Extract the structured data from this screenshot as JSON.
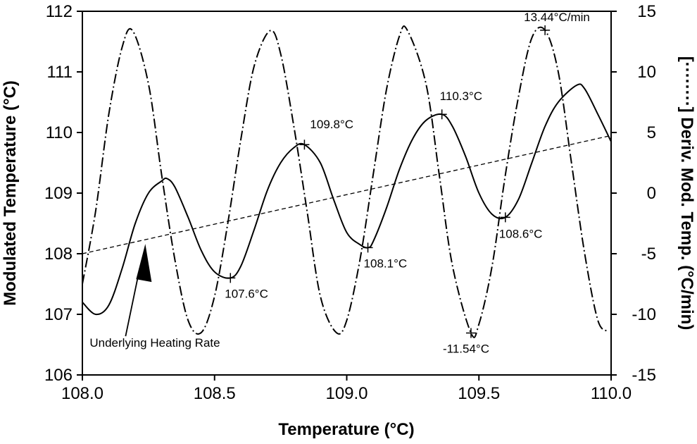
{
  "chart_data": {
    "type": "line",
    "xlabel": "Temperature (°C)",
    "ylabel": "Modulated Temperature (°C)",
    "y2label": "[········] Deriv. Mod. Temp. (°C/min)",
    "xlim": [
      108.0,
      110.0
    ],
    "ylim": [
      106,
      112
    ],
    "y2lim": [
      -15,
      15
    ],
    "xticks": [
      "108.0",
      "108.5",
      "109.0",
      "109.5",
      "110.0"
    ],
    "yticks": [
      "106",
      "107",
      "108",
      "109",
      "110",
      "111",
      "112"
    ],
    "y2ticks": [
      "-15",
      "-10",
      "-5",
      "0",
      "5",
      "10",
      "15"
    ],
    "grid": false,
    "series": [
      {
        "style": "solid",
        "axis": "left",
        "x": [
          108.0,
          108.05,
          108.1,
          108.15,
          108.2,
          108.25,
          108.3,
          108.32,
          108.35,
          108.4,
          108.45,
          108.5,
          108.56,
          108.6,
          108.65,
          108.7,
          108.75,
          108.8,
          108.84,
          108.9,
          108.95,
          109.0,
          109.05,
          109.08,
          109.1,
          109.15,
          109.2,
          109.25,
          109.3,
          109.36,
          109.4,
          109.45,
          109.5,
          109.55,
          109.6,
          109.65,
          109.7,
          109.75,
          109.8,
          109.87,
          109.9,
          109.95,
          110.0
        ],
        "y": [
          107.2,
          107.0,
          107.15,
          107.75,
          108.5,
          109.0,
          109.2,
          109.24,
          109.1,
          108.6,
          108.05,
          107.7,
          107.6,
          107.8,
          108.4,
          109.05,
          109.5,
          109.75,
          109.8,
          109.5,
          108.9,
          108.35,
          108.15,
          108.1,
          108.2,
          108.75,
          109.4,
          109.9,
          110.2,
          110.3,
          110.1,
          109.6,
          109.0,
          108.65,
          108.6,
          108.9,
          109.5,
          110.1,
          110.5,
          110.78,
          110.72,
          110.3,
          109.85
        ]
      },
      {
        "style": "long-dash",
        "axis": "right",
        "x": [
          108.0,
          108.05,
          108.1,
          108.15,
          108.19,
          108.25,
          108.3,
          108.35,
          108.4,
          108.45,
          108.5,
          108.55,
          108.6,
          108.65,
          108.71,
          108.75,
          108.8,
          108.85,
          108.9,
          108.96,
          109.0,
          109.05,
          109.1,
          109.15,
          109.2,
          109.23,
          109.3,
          109.35,
          109.4,
          109.47,
          109.5,
          109.55,
          109.6,
          109.65,
          109.7,
          109.75,
          109.8,
          109.85,
          109.9,
          109.95,
          109.99
        ],
        "y": [
          -7.5,
          -1.5,
          6.5,
          12.0,
          13.4,
          9.0,
          1.5,
          -5.5,
          -10.5,
          -11.5,
          -8.5,
          -2.5,
          4.5,
          10.5,
          13.4,
          11.5,
          5.5,
          -1.5,
          -8.5,
          -11.5,
          -10.5,
          -5.5,
          1.5,
          8.5,
          13.0,
          13.4,
          9.0,
          1.5,
          -6.0,
          -11.54,
          -10.8,
          -6.0,
          1.5,
          8.0,
          12.8,
          13.44,
          10.0,
          2.5,
          -5.0,
          -10.5,
          -11.4
        ]
      },
      {
        "style": "short-dash",
        "axis": "left",
        "x": [
          108.0,
          110.0
        ],
        "y": [
          108.0,
          109.95
        ]
      }
    ],
    "annotations": [
      {
        "text": "107.6°C",
        "x": 108.56,
        "y": 107.6,
        "axis": "left"
      },
      {
        "text": "109.8°C",
        "x": 108.84,
        "y": 109.8,
        "axis": "left"
      },
      {
        "text": "108.1°C",
        "x": 109.08,
        "y": 108.1,
        "axis": "left"
      },
      {
        "text": "110.3°C",
        "x": 109.36,
        "y": 110.3,
        "axis": "left"
      },
      {
        "text": "108.6°C",
        "x": 109.6,
        "y": 108.6,
        "axis": "left"
      },
      {
        "text": "13.44°C/min",
        "x": 109.75,
        "y": 13.44,
        "axis": "right"
      },
      {
        "text": "-11.54°C",
        "x": 109.47,
        "y": -11.54,
        "axis": "right"
      },
      {
        "text": "Underlying Heating Rate",
        "x": 108.23,
        "y": 108.15,
        "axis": "left"
      }
    ]
  }
}
